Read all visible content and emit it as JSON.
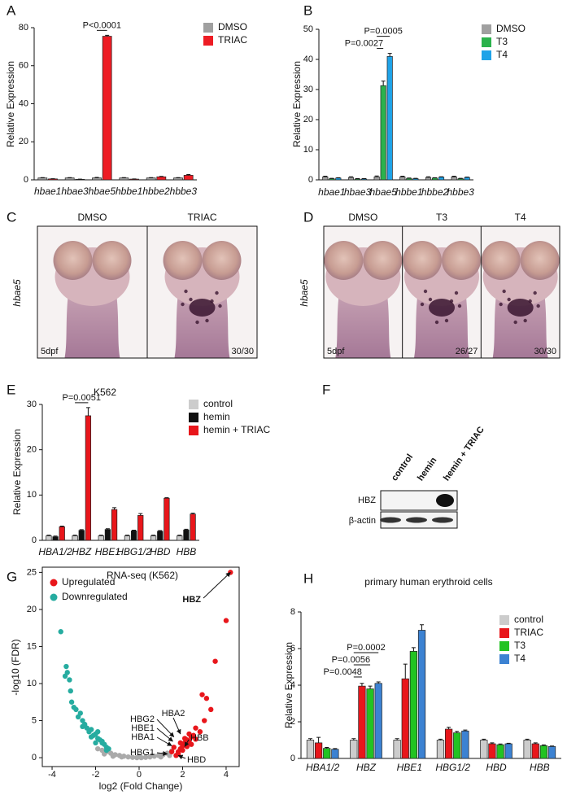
{
  "chart_data": [
    {
      "panel": "A",
      "type": "bar",
      "categories": [
        "hbae1",
        "hbae3",
        "hbae5",
        "hbbe1",
        "hbbe2",
        "hbbe3"
      ],
      "italic_categories": true,
      "ylabel": "Relative Expression",
      "ylim": [
        0,
        80
      ],
      "yticks": [
        0,
        20,
        40,
        60,
        80
      ],
      "series": [
        {
          "name": "DMSO",
          "color": "#a0a0a0",
          "values": [
            1,
            1,
            1,
            1,
            1,
            1
          ],
          "errors": [
            0.2,
            0.2,
            0.3,
            0.2,
            0.2,
            0.2
          ]
        },
        {
          "name": "TRIAC",
          "color": "#ed1c24",
          "values": [
            0.5,
            0.3,
            75.5,
            0.4,
            1.6,
            2.4
          ],
          "errors": [
            0.1,
            0.1,
            0.5,
            0.1,
            0.2,
            0.4
          ]
        }
      ],
      "annotations": [
        {
          "text": "P<0.0001",
          "category": "hbae5",
          "between": [
            "DMSO",
            "TRIAC"
          ]
        }
      ]
    },
    {
      "panel": "B",
      "type": "bar",
      "categories": [
        "hbae1",
        "hbae3",
        "hbae5",
        "hbbe1",
        "hbbe2",
        "hbbe3"
      ],
      "italic_categories": true,
      "ylabel": "Relative Expression",
      "ylim": [
        0,
        50
      ],
      "yticks": [
        0,
        10,
        20,
        30,
        40,
        50
      ],
      "series": [
        {
          "name": "DMSO",
          "color": "#a0a0a0",
          "values": [
            1,
            0.8,
            1,
            1,
            0.8,
            1
          ],
          "errors": [
            0.2,
            0.2,
            0.3,
            0.2,
            0.2,
            0.2
          ]
        },
        {
          "name": "T3",
          "color": "#2bb24c",
          "values": [
            0.4,
            0.3,
            31.3,
            0.5,
            0.6,
            0.4
          ],
          "errors": [
            0.1,
            0.1,
            1.5,
            0.1,
            0.1,
            0.1
          ]
        },
        {
          "name": "T4",
          "color": "#1fa3e8",
          "values": [
            0.6,
            0.3,
            41,
            0.4,
            0.9,
            0.8
          ],
          "errors": [
            0.1,
            0.1,
            1,
            0.1,
            0.1,
            0.1
          ]
        }
      ],
      "annotations": [
        {
          "text": "P=0.0027",
          "category": "hbae5",
          "between": [
            "DMSO",
            "T3"
          ]
        },
        {
          "text": "P=0.0005",
          "category": "hbae5",
          "between": [
            "DMSO",
            "T4"
          ]
        }
      ]
    },
    {
      "panel": "E",
      "type": "bar",
      "title": "K562",
      "categories": [
        "HBA1/2",
        "HBZ",
        "HBE1",
        "HBG1/2",
        "HBD",
        "HBB"
      ],
      "italic_categories": true,
      "ylabel": "Relative Expression",
      "ylim": [
        0,
        30
      ],
      "yticks": [
        0,
        10,
        20,
        30
      ],
      "series": [
        {
          "name": "control",
          "color": "#cccccc",
          "values": [
            1,
            1,
            1,
            1,
            1,
            1
          ],
          "errors": [
            0.15,
            0.15,
            0.15,
            0.15,
            0.15,
            0.15
          ]
        },
        {
          "name": "hemin",
          "color": "#111111",
          "values": [
            0.8,
            2.2,
            2.4,
            2.1,
            2.0,
            2.3
          ],
          "errors": [
            0.15,
            0.15,
            0.15,
            0.15,
            0.15,
            0.15
          ]
        },
        {
          "name": "hemin + TRIAC",
          "color": "#e8161b",
          "values": [
            3.0,
            27.5,
            6.8,
            5.5,
            9.3,
            5.8
          ],
          "errors": [
            0.15,
            1.8,
            0.4,
            0.4,
            0.1,
            0.2
          ]
        }
      ],
      "annotations": [
        {
          "text": "P=0.0051",
          "category": "HBZ",
          "between": [
            "control",
            "hemin + TRIAC"
          ]
        }
      ]
    },
    {
      "panel": "G",
      "type": "scatter",
      "title": "RNA-seq (K562)",
      "xlabel": "log2 (Fold Change)",
      "ylabel": "-log10 (FDR)",
      "xlim": [
        -4.45,
        4.6
      ],
      "xticks": [
        -4,
        -2,
        0,
        2,
        4
      ],
      "ylim": [
        -1.2,
        25.7
      ],
      "yticks": [
        0,
        5,
        10,
        15,
        20,
        25
      ],
      "series": [
        {
          "color": "#aaaaaa",
          "x": [
            -1.9,
            -1.7,
            -1.5,
            -1.3,
            -1.1,
            -0.9,
            -0.7,
            -0.5,
            -0.3,
            -0.1,
            0.1,
            0.3,
            0.5,
            0.7,
            0.9,
            1.1,
            1.3,
            1.5,
            -1.6,
            -1.2,
            -0.8,
            0.0,
            0.6,
            1.0,
            1.4
          ],
          "values": [
            1.2,
            1.0,
            0.8,
            0.6,
            0.4,
            0.3,
            0.2,
            0.1,
            0.05,
            0.0,
            0.0,
            0.05,
            0.1,
            0.2,
            0.3,
            0.4,
            0.6,
            0.9,
            0.5,
            0.2,
            0.1,
            0.2,
            0.3,
            0.1,
            0.3
          ]
        },
        {
          "name": "Upregulated",
          "color": "#e8161b",
          "x": [
            1.7,
            1.8,
            1.9,
            2.0,
            2.1,
            2.2,
            2.3,
            2.4,
            2.5,
            1.8,
            2.0,
            2.2,
            2.4,
            2.6,
            2.8,
            3.0,
            2.6,
            2.9,
            3.1,
            3.3,
            3.5,
            4.0,
            4.2,
            1.9,
            2.1,
            2.3,
            1.6,
            1.5
          ],
          "values": [
            0.3,
            0.8,
            1.2,
            1.6,
            2.0,
            2.4,
            2.2,
            2.8,
            3.0,
            0.5,
            1.0,
            1.5,
            1.8,
            2.5,
            3.5,
            5.0,
            4.0,
            8.5,
            8.0,
            6.5,
            13.0,
            18.5,
            25.0,
            2.0,
            2.6,
            3.2,
            1.4,
            0.8
          ]
        },
        {
          "name": "Downregulated",
          "color": "#26aca0",
          "x": [
            -3.6,
            -3.4,
            -3.35,
            -3.3,
            -3.2,
            -3.15,
            -3.1,
            -3.0,
            -2.9,
            -2.8,
            -2.7,
            -2.6,
            -2.5,
            -2.4,
            -2.3,
            -2.2,
            -2.1,
            -2.0,
            -1.9,
            -1.8,
            -1.7,
            -1.6,
            -1.5,
            -1.4,
            -2.6,
            -2.2,
            -1.9,
            -1.7,
            -2.0,
            -1.5
          ],
          "values": [
            17,
            11,
            12.3,
            11.5,
            10.5,
            9.0,
            7.5,
            6.8,
            6.5,
            5.5,
            6.0,
            5.0,
            4.5,
            4.0,
            3.5,
            3.8,
            3.0,
            3.2,
            2.6,
            2.4,
            2.0,
            1.8,
            1.4,
            1.2,
            4.2,
            2.8,
            3.5,
            2.2,
            2.0,
            1.0
          ]
        }
      ],
      "point_labels": [
        {
          "text": "HBZ",
          "x": 4.2,
          "y": 25
        },
        {
          "text": "HBA2",
          "x": 1.9,
          "y": 3.2
        },
        {
          "text": "HBG2",
          "x": 1.6,
          "y": 2.8
        },
        {
          "text": "HBE1",
          "x": 1.55,
          "y": 2.2
        },
        {
          "text": "HBA1",
          "x": 1.5,
          "y": 1.6
        },
        {
          "text": "HBG1",
          "x": 1.3,
          "y": 0.5
        },
        {
          "text": "HBB",
          "x": 2.1,
          "y": 1.5
        },
        {
          "text": "HBD",
          "x": 1.8,
          "y": 0.3
        }
      ]
    },
    {
      "panel": "H",
      "type": "bar",
      "title": "primary human erythroid cells",
      "categories": [
        "HBA1/2",
        "HBZ",
        "HBE1",
        "HBG1/2",
        "HBD",
        "HBB"
      ],
      "italic_categories": true,
      "ylabel": "Relative Expression",
      "ylim": [
        0,
        8
      ],
      "yticks": [
        0,
        2,
        4,
        6,
        8
      ],
      "series": [
        {
          "name": "control",
          "color": "#cccccc",
          "values": [
            1,
            1,
            1,
            1,
            1,
            1
          ],
          "errors": [
            0.08,
            0.08,
            0.08,
            0.05,
            0.05,
            0.05
          ]
        },
        {
          "name": "TRIAC",
          "color": "#e8161b",
          "values": [
            0.85,
            3.95,
            4.35,
            1.6,
            0.8,
            0.8
          ],
          "errors": [
            0.3,
            0.15,
            0.8,
            0.1,
            0.05,
            0.05
          ]
        },
        {
          "name": "T3",
          "color": "#22c322",
          "values": [
            0.55,
            3.8,
            5.85,
            1.4,
            0.75,
            0.7
          ],
          "errors": [
            0.05,
            0.15,
            0.2,
            0.08,
            0.04,
            0.04
          ]
        },
        {
          "name": "T4",
          "color": "#3c82d2",
          "values": [
            0.5,
            4.1,
            7.0,
            1.5,
            0.8,
            0.65
          ],
          "errors": [
            0.04,
            0.08,
            0.3,
            0.05,
            0.03,
            0.03
          ]
        }
      ],
      "annotations": [
        {
          "text": "P=0.0048",
          "category": "HBZ",
          "between": [
            "control",
            "TRIAC"
          ]
        },
        {
          "text": "P=0.0056",
          "category": "HBZ",
          "between": [
            "control",
            "T3"
          ]
        },
        {
          "text": "P=0.0002",
          "category": "HBZ",
          "between": [
            "control",
            "T4"
          ]
        }
      ]
    }
  ],
  "embryos": [
    {
      "panel": "C",
      "gene": "hbae5",
      "stage": "5dpf",
      "panes": [
        {
          "label": "DMSO"
        },
        {
          "label": "TRIAC",
          "count": "30/30"
        }
      ]
    },
    {
      "panel": "D",
      "gene": "hbae5",
      "stage": "5dpf",
      "panes": [
        {
          "label": "DMSO"
        },
        {
          "label": "T3",
          "count": "26/27"
        },
        {
          "label": "T4",
          "count": "30/30"
        }
      ]
    }
  ],
  "blot": {
    "panel": "F",
    "lanes": [
      "control",
      "hemin",
      "hemin + TRIAC"
    ],
    "rows": [
      "HBZ",
      "β-actin"
    ]
  }
}
